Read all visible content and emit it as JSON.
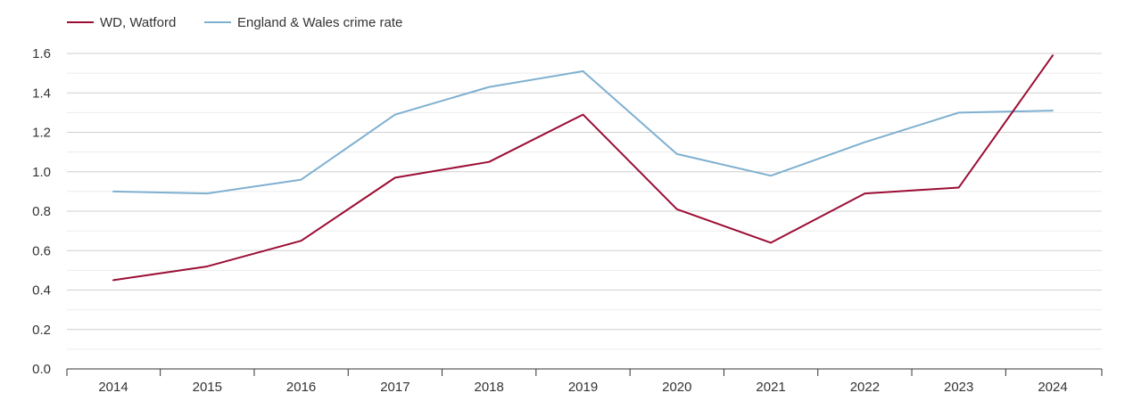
{
  "chart_data": {
    "type": "line",
    "categories": [
      "2014",
      "2015",
      "2016",
      "2017",
      "2018",
      "2019",
      "2020",
      "2021",
      "2022",
      "2023",
      "2024"
    ],
    "series": [
      {
        "name": "WD, Watford",
        "color": "#9b0d34",
        "values": [
          0.45,
          0.52,
          0.65,
          0.97,
          1.05,
          1.29,
          0.81,
          0.64,
          0.89,
          0.92,
          1.59
        ]
      },
      {
        "name": "England & Wales crime rate",
        "color": "#7fb0d0",
        "values": [
          0.9,
          0.89,
          0.96,
          1.29,
          1.43,
          1.51,
          1.09,
          0.98,
          1.15,
          1.3,
          1.31
        ]
      }
    ],
    "y_ticks": [
      "0.0",
      "0.2",
      "0.4",
      "0.6",
      "0.8",
      "1.0",
      "1.2",
      "1.4",
      "1.6"
    ],
    "ylim": [
      0,
      1.6
    ],
    "grid": true,
    "legend": "top-left"
  }
}
